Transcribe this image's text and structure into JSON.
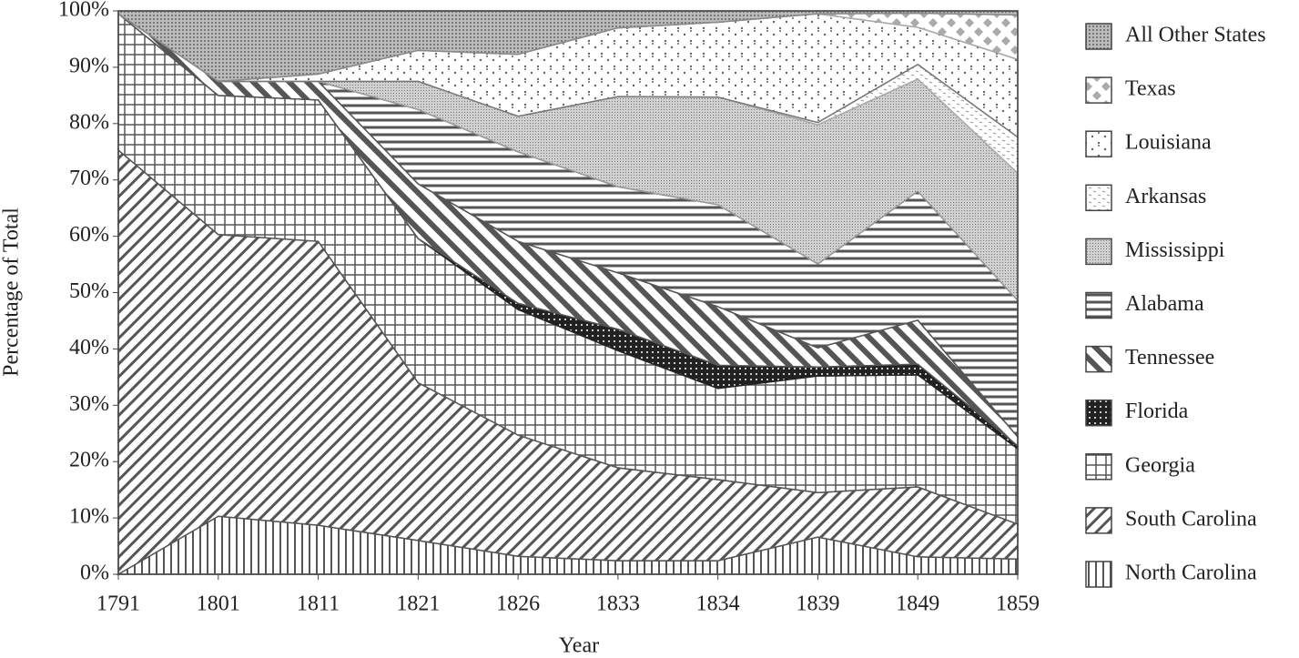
{
  "chart_data": {
    "type": "stacked-area",
    "x_label": "Year",
    "y_label": "Percentage of Total",
    "categories": [
      "1791",
      "1801",
      "1811",
      "1821",
      "1826",
      "1833",
      "1834",
      "1839",
      "1849",
      "1859"
    ],
    "ylim": [
      0,
      100
    ],
    "yticks": [
      {
        "value": 0,
        "label": "0%"
      },
      {
        "value": 10,
        "label": "10%"
      },
      {
        "value": 20,
        "label": "20%"
      },
      {
        "value": 30,
        "label": "30%"
      },
      {
        "value": 40,
        "label": "40%"
      },
      {
        "value": 50,
        "label": "50%"
      },
      {
        "value": 60,
        "label": "60%"
      },
      {
        "value": 70,
        "label": "70%"
      },
      {
        "value": 80,
        "label": "80%"
      },
      {
        "value": 90,
        "label": "90%"
      },
      {
        "value": 100,
        "label": "100%"
      }
    ],
    "series": [
      {
        "name": "North Carolina",
        "color": "#555555",
        "values": [
          0,
          10.3,
          8.7,
          6,
          3.2,
          2.4,
          2.4,
          6.6,
          3.1,
          2.7
        ]
      },
      {
        "name": "South Carolina",
        "color": "#555555",
        "values": [
          75.3,
          50,
          50.4,
          28,
          21.5,
          16.5,
          14.4,
          7.9,
          12.4,
          6.2
        ]
      },
      {
        "name": "Georgia",
        "color": "#555555",
        "values": [
          24.2,
          24.7,
          25.1,
          25.6,
          22.3,
          20.8,
          16.2,
          20.7,
          19.9,
          13.4
        ]
      },
      {
        "name": "Florida",
        "color": "#222222",
        "values": [
          0,
          0,
          0,
          0,
          1.1,
          3.8,
          4.1,
          1.6,
          1.9,
          0.5
        ]
      },
      {
        "name": "Tennessee",
        "color": "#555555",
        "values": [
          0,
          2.5,
          3.3,
          9.7,
          11,
          10,
          10.4,
          3.4,
          7.8,
          1.6
        ]
      },
      {
        "name": "Alabama",
        "color": "#555555",
        "values": [
          0,
          0,
          0,
          13.2,
          15.9,
          15.3,
          18.1,
          14.9,
          22.9,
          24.2
        ]
      },
      {
        "name": "Mississippi",
        "color": "#999999",
        "values": [
          0,
          0,
          0,
          5,
          6.3,
          16,
          19.1,
          24.7,
          19.9,
          22.6
        ]
      },
      {
        "name": "Arkansas",
        "color": "#aaaaaa",
        "values": [
          0,
          0,
          0,
          0,
          0,
          0,
          0,
          0.4,
          2.6,
          6.4
        ]
      },
      {
        "name": "Louisiana",
        "color": "#777777",
        "values": [
          0,
          0,
          1.3,
          5.5,
          11,
          12.2,
          13.3,
          19.3,
          6.6,
          13.8
        ]
      },
      {
        "name": "Texas",
        "color": "#aaaaaa",
        "values": [
          0,
          0,
          0,
          0,
          0,
          0,
          0,
          0,
          2.5,
          7.9
        ]
      },
      {
        "name": "All Other States",
        "color": "#888888",
        "values": [
          0.5,
          12.5,
          11.2,
          7,
          7.7,
          3,
          2,
          0.5,
          0.4,
          0.7
        ]
      }
    ]
  }
}
